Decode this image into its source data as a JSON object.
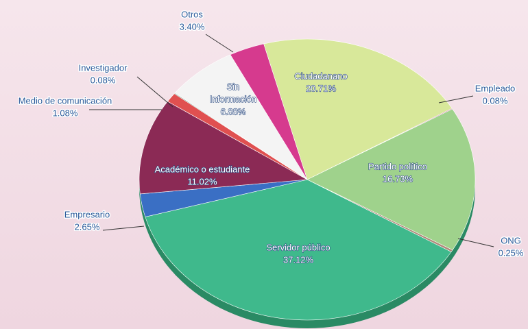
{
  "chart_data": {
    "type": "pie",
    "categories": [
      "Ciudadanano",
      "Empleado",
      "Partido político",
      "ONG",
      "Servidor público",
      "Empresario",
      "Académico o estudiante",
      "Medio de comunicación",
      "Investigador",
      "Sin Información",
      "Otros"
    ],
    "values": [
      20.71,
      0.08,
      16.73,
      0.25,
      37.12,
      2.65,
      11.02,
      1.08,
      0.08,
      6.88,
      3.4
    ],
    "value_labels": [
      "20.71%",
      "0.08%",
      "16.73%",
      "0.25%",
      "37.12%",
      "2.65%",
      "11.02%",
      "1.08%",
      "0.08%",
      "6.88%",
      "3.40%"
    ],
    "colors": [
      "#d8e89a",
      "#c4407e",
      "#9fd28c",
      "#b08a7a",
      "#3fb98c",
      "#3a6fc4",
      "#8b2a55",
      "#e05050",
      "#2f6a4a",
      "#f4f4f4",
      "#d63a8e"
    ]
  }
}
